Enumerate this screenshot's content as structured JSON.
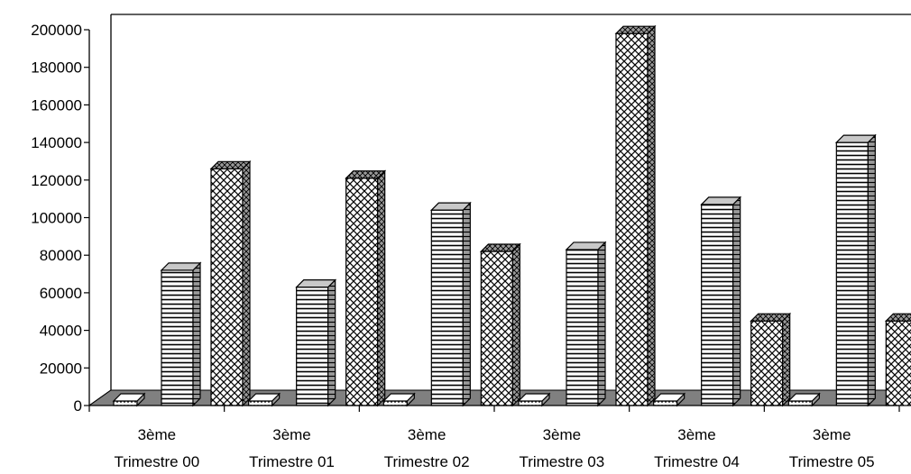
{
  "chart_data": {
    "type": "bar",
    "categories": [
      [
        "3ème",
        "Trimestre 00"
      ],
      [
        "3ème",
        "Trimestre 01"
      ],
      [
        "3ème",
        "Trimestre 02"
      ],
      [
        "3ème",
        "Trimestre 03"
      ],
      [
        "3ème",
        "Trimestre 04"
      ],
      [
        "3ème",
        "Trimestre 05"
      ]
    ],
    "series": [
      {
        "pattern": "dots",
        "values": [
          0,
          1000,
          0,
          0,
          0,
          0
        ]
      },
      {
        "pattern": "horizontal-lines",
        "values": [
          72000,
          63000,
          104000,
          83000,
          107000,
          140000
        ]
      },
      {
        "pattern": "diagonal-cross",
        "values": [
          126000,
          121000,
          82000,
          198000,
          45000,
          45000
        ]
      }
    ],
    "ylim": [
      0,
      200000
    ],
    "yticks": [
      0,
      20000,
      40000,
      60000,
      80000,
      100000,
      120000,
      140000,
      160000,
      180000,
      200000
    ],
    "grid": false,
    "legend": "none",
    "colors": {
      "floor": "#808080",
      "bar_face": "#ffffff",
      "bar_side": "#9a9a9a",
      "bar_top": "#c8c8c8",
      "stroke": "#000000"
    }
  }
}
